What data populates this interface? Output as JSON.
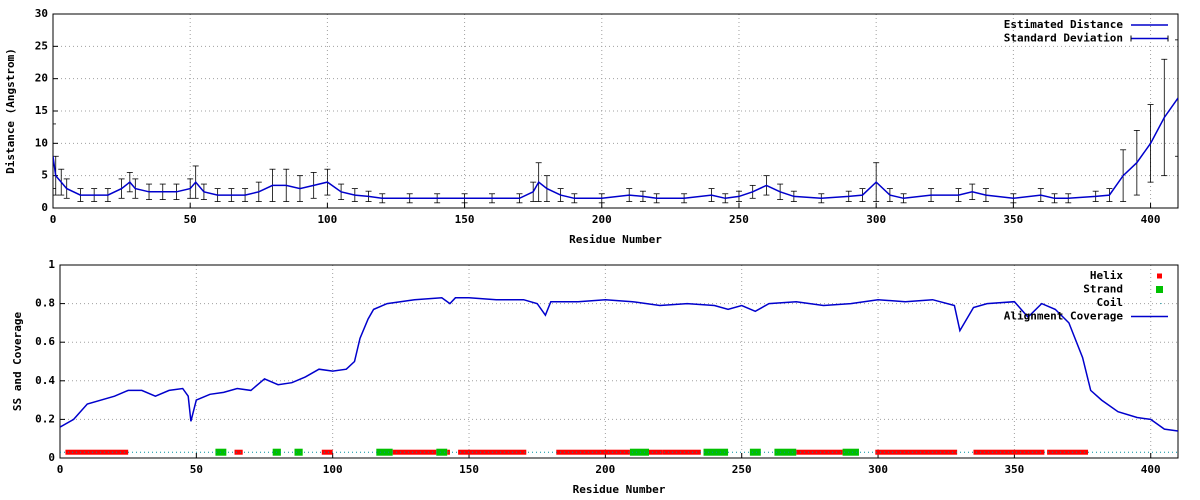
{
  "chart_data": [
    {
      "type": "line",
      "ylabel": "Distance (Angstrom)",
      "xlabel": "Residue Number",
      "xlim": [
        0,
        410
      ],
      "xticks": [
        0,
        50,
        100,
        150,
        200,
        250,
        300,
        350,
        400
      ],
      "ylim": [
        0,
        30
      ],
      "yticks": [
        0,
        5,
        10,
        15,
        20,
        25,
        30
      ],
      "grid": true,
      "legend": "top-right",
      "x": [
        0,
        1,
        3,
        5,
        10,
        15,
        20,
        25,
        28,
        30,
        35,
        40,
        45,
        50,
        52,
        55,
        60,
        65,
        70,
        75,
        80,
        85,
        90,
        95,
        100,
        105,
        110,
        115,
        120,
        130,
        140,
        150,
        160,
        170,
        175,
        177,
        180,
        185,
        190,
        200,
        210,
        215,
        220,
        230,
        240,
        245,
        250,
        255,
        260,
        265,
        270,
        280,
        290,
        295,
        300,
        305,
        310,
        320,
        330,
        335,
        340,
        350,
        360,
        365,
        370,
        380,
        385,
        390,
        395,
        400,
        405,
        410
      ],
      "series": [
        {
          "name": "Estimated Distance",
          "error_name": "Standard Deviation",
          "color": "#0000cc",
          "values": [
            8,
            5,
            4,
            3,
            2,
            2,
            2,
            3,
            4,
            3,
            2.5,
            2.5,
            2.5,
            3,
            4,
            2.5,
            2,
            2,
            2,
            2.5,
            3.5,
            3.5,
            3,
            3.5,
            4,
            2.5,
            2,
            1.8,
            1.5,
            1.5,
            1.5,
            1.5,
            1.5,
            1.5,
            2.5,
            4,
            3,
            2,
            1.5,
            1.5,
            2,
            1.8,
            1.5,
            1.5,
            2,
            1.5,
            1.8,
            2.5,
            3.5,
            2.5,
            1.8,
            1.5,
            1.8,
            2,
            4,
            2,
            1.5,
            2,
            2,
            2.5,
            2,
            1.5,
            2,
            1.5,
            1.5,
            1.8,
            2,
            5,
            7,
            10,
            14,
            17
          ],
          "errors": [
            5,
            3,
            2,
            1.5,
            1,
            1,
            1,
            1.5,
            1.5,
            1.5,
            1.2,
            1.2,
            1.2,
            1.5,
            2.5,
            1.2,
            1,
            1,
            1,
            1.5,
            2.5,
            2.5,
            2,
            2,
            2,
            1.2,
            1,
            0.8,
            0.7,
            0.7,
            0.7,
            0.7,
            0.7,
            0.7,
            1.5,
            3,
            2,
            1,
            0.7,
            0.7,
            1,
            0.8,
            0.7,
            0.7,
            1,
            0.7,
            0.8,
            1,
            1.5,
            1.2,
            0.8,
            0.7,
            0.8,
            1,
            3,
            1,
            0.7,
            1,
            1,
            1.2,
            1,
            0.7,
            1,
            0.7,
            0.7,
            0.8,
            1,
            4,
            5,
            6,
            9,
            9
          ]
        }
      ]
    },
    {
      "type": "line",
      "ylabel": "SS and Coverage",
      "xlabel": "Residue Number",
      "xlim": [
        0,
        410
      ],
      "xticks": [
        0,
        50,
        100,
        150,
        200,
        250,
        300,
        350,
        400
      ],
      "ylim": [
        0,
        1
      ],
      "yticks": [
        0,
        0.2,
        0.4,
        0.6,
        0.8,
        1
      ],
      "grid": true,
      "legend": "top-right",
      "x": [
        0,
        5,
        10,
        20,
        25,
        30,
        35,
        40,
        45,
        47,
        48,
        50,
        55,
        60,
        65,
        70,
        75,
        80,
        85,
        90,
        95,
        100,
        105,
        108,
        110,
        113,
        115,
        120,
        130,
        140,
        143,
        145,
        150,
        160,
        170,
        175,
        178,
        180,
        190,
        200,
        210,
        220,
        230,
        240,
        245,
        250,
        255,
        260,
        270,
        280,
        290,
        300,
        310,
        320,
        328,
        330,
        335,
        340,
        350,
        355,
        360,
        365,
        370,
        375,
        378,
        382,
        388,
        395,
        400,
        405,
        410
      ],
      "series": [
        {
          "name": "Helix",
          "color": "#ff0000",
          "level": 0.03,
          "ranges": [
            [
              2,
              25
            ],
            [
              64,
              67
            ],
            [
              96,
              100
            ],
            [
              122,
              138
            ],
            [
              142,
              143
            ],
            [
              146,
              171
            ],
            [
              182,
              209
            ],
            [
              216,
              221
            ],
            [
              221,
              235
            ],
            [
              270,
              287
            ],
            [
              299,
              329
            ],
            [
              335,
              361
            ],
            [
              362,
              377
            ]
          ]
        },
        {
          "name": "Strand",
          "color": "#00c000",
          "level": 0.03,
          "ranges": [
            [
              57,
              61
            ],
            [
              78,
              81
            ],
            [
              86,
              89
            ],
            [
              116,
              122
            ],
            [
              138,
              142
            ],
            [
              209,
              216
            ],
            [
              236,
              245
            ],
            [
              253,
              257
            ],
            [
              262,
              270
            ],
            [
              287,
              293
            ]
          ]
        },
        {
          "name": "Coil",
          "color": "#0090a0",
          "level": 0.03,
          "ranges": [
            [
              0,
              410
            ]
          ]
        },
        {
          "name": "Alignment Coverage",
          "color": "#0000cc",
          "values": [
            0.16,
            0.2,
            0.28,
            0.32,
            0.35,
            0.35,
            0.32,
            0.35,
            0.36,
            0.32,
            0.19,
            0.3,
            0.33,
            0.34,
            0.36,
            0.35,
            0.41,
            0.38,
            0.39,
            0.42,
            0.46,
            0.45,
            0.46,
            0.5,
            0.62,
            0.72,
            0.77,
            0.8,
            0.82,
            0.83,
            0.8,
            0.83,
            0.83,
            0.82,
            0.82,
            0.8,
            0.74,
            0.81,
            0.81,
            0.82,
            0.81,
            0.79,
            0.8,
            0.79,
            0.77,
            0.79,
            0.76,
            0.8,
            0.81,
            0.79,
            0.8,
            0.82,
            0.81,
            0.82,
            0.79,
            0.66,
            0.78,
            0.8,
            0.81,
            0.73,
            0.8,
            0.77,
            0.7,
            0.52,
            0.35,
            0.3,
            0.24,
            0.21,
            0.2,
            0.15,
            0.14
          ]
        }
      ]
    }
  ]
}
